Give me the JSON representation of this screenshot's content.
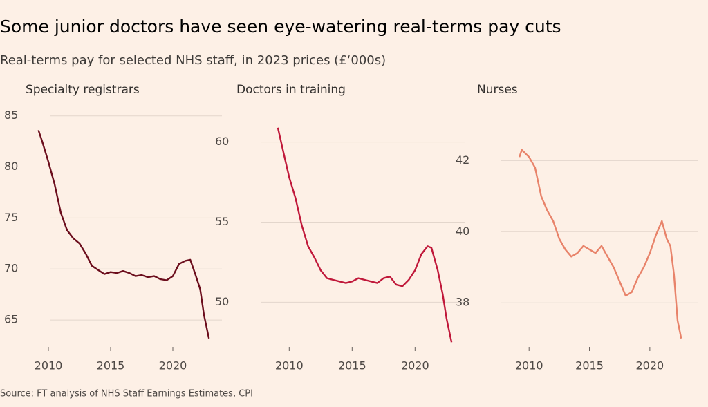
{
  "title": "Some junior doctors have seen eye-watering real-terms pay cuts",
  "subtitle": "Real-terms pay for selected NHS staff, in 2023 prices (£‘000s)",
  "source": "Source: FT analysis of NHS Staff Earnings Estimates, CPI",
  "chart_data": [
    {
      "type": "line",
      "title": "Specialty registrars",
      "color": "#6b0d1c",
      "x": [
        2009.2,
        2009.5,
        2010.0,
        2010.5,
        2011.0,
        2011.5,
        2012.0,
        2012.5,
        2013.0,
        2013.5,
        2014.0,
        2014.5,
        2015.0,
        2015.5,
        2016.0,
        2016.5,
        2017.0,
        2017.5,
        2018.0,
        2018.5,
        2019.0,
        2019.5,
        2020.0,
        2020.5,
        2021.0,
        2021.4,
        2021.8,
        2022.2,
        2022.5,
        2022.9
      ],
      "values": [
        83.6,
        82.5,
        80.5,
        78.3,
        75.5,
        73.8,
        73.0,
        72.5,
        71.5,
        70.3,
        69.9,
        69.5,
        69.7,
        69.6,
        69.8,
        69.6,
        69.3,
        69.4,
        69.2,
        69.3,
        69.0,
        68.9,
        69.3,
        70.5,
        70.8,
        70.9,
        69.5,
        68.0,
        65.5,
        63.2
      ],
      "xlim": [
        2008.5,
        2023.5
      ],
      "ylim": [
        62.5,
        86.2
      ],
      "xticks": [
        2010,
        2015,
        2020
      ],
      "yticks": [
        65,
        70,
        75,
        80,
        85
      ],
      "grid": true
    },
    {
      "type": "line",
      "title": "Doctors in training",
      "color": "#c0183a",
      "x": [
        2009.1,
        2009.5,
        2010.0,
        2010.5,
        2011.0,
        2011.5,
        2012.0,
        2012.5,
        2013.0,
        2013.5,
        2014.0,
        2014.5,
        2015.0,
        2015.5,
        2016.0,
        2016.5,
        2017.0,
        2017.5,
        2018.0,
        2018.5,
        2019.0,
        2019.5,
        2020.0,
        2020.5,
        2021.0,
        2021.3,
        2021.8,
        2022.2,
        2022.5,
        2022.9
      ],
      "values": [
        60.9,
        59.5,
        57.8,
        56.5,
        54.8,
        53.5,
        52.8,
        52.0,
        51.5,
        51.4,
        51.3,
        51.2,
        51.3,
        51.5,
        51.4,
        51.3,
        51.2,
        51.5,
        51.6,
        51.1,
        51.0,
        51.4,
        52.0,
        53.0,
        53.5,
        53.4,
        52.0,
        50.5,
        49.0,
        47.5
      ],
      "xlim": [
        2008.5,
        2023.5
      ],
      "ylim": [
        47.3,
        62.4
      ],
      "xticks": [
        2010,
        2015,
        2020
      ],
      "yticks": [
        50,
        55,
        60
      ],
      "grid": true
    },
    {
      "type": "line",
      "title": "Nurses",
      "color": "#e8836a",
      "x": [
        2009.2,
        2009.4,
        2009.7,
        2010.0,
        2010.5,
        2011.0,
        2011.5,
        2012.0,
        2012.5,
        2013.0,
        2013.5,
        2014.0,
        2014.5,
        2015.0,
        2015.5,
        2016.0,
        2016.5,
        2017.0,
        2017.5,
        2018.0,
        2018.5,
        2019.0,
        2019.5,
        2020.0,
        2020.5,
        2021.0,
        2021.4,
        2021.7,
        2022.0,
        2022.3,
        2022.6
      ],
      "values": [
        42.1,
        42.3,
        42.2,
        42.1,
        41.8,
        41.0,
        40.6,
        40.3,
        39.8,
        39.5,
        39.3,
        39.4,
        39.6,
        39.5,
        39.4,
        39.6,
        39.3,
        39.0,
        38.6,
        38.2,
        38.3,
        38.7,
        39.0,
        39.4,
        39.9,
        40.3,
        39.8,
        39.6,
        38.8,
        37.5,
        37.0
      ],
      "xlim": [
        2008.5,
        2023.5
      ],
      "ylim": [
        36.8,
        43.6
      ],
      "xticks": [
        2010,
        2015,
        2020
      ],
      "yticks": [
        38,
        40,
        42
      ],
      "grid": true
    }
  ]
}
